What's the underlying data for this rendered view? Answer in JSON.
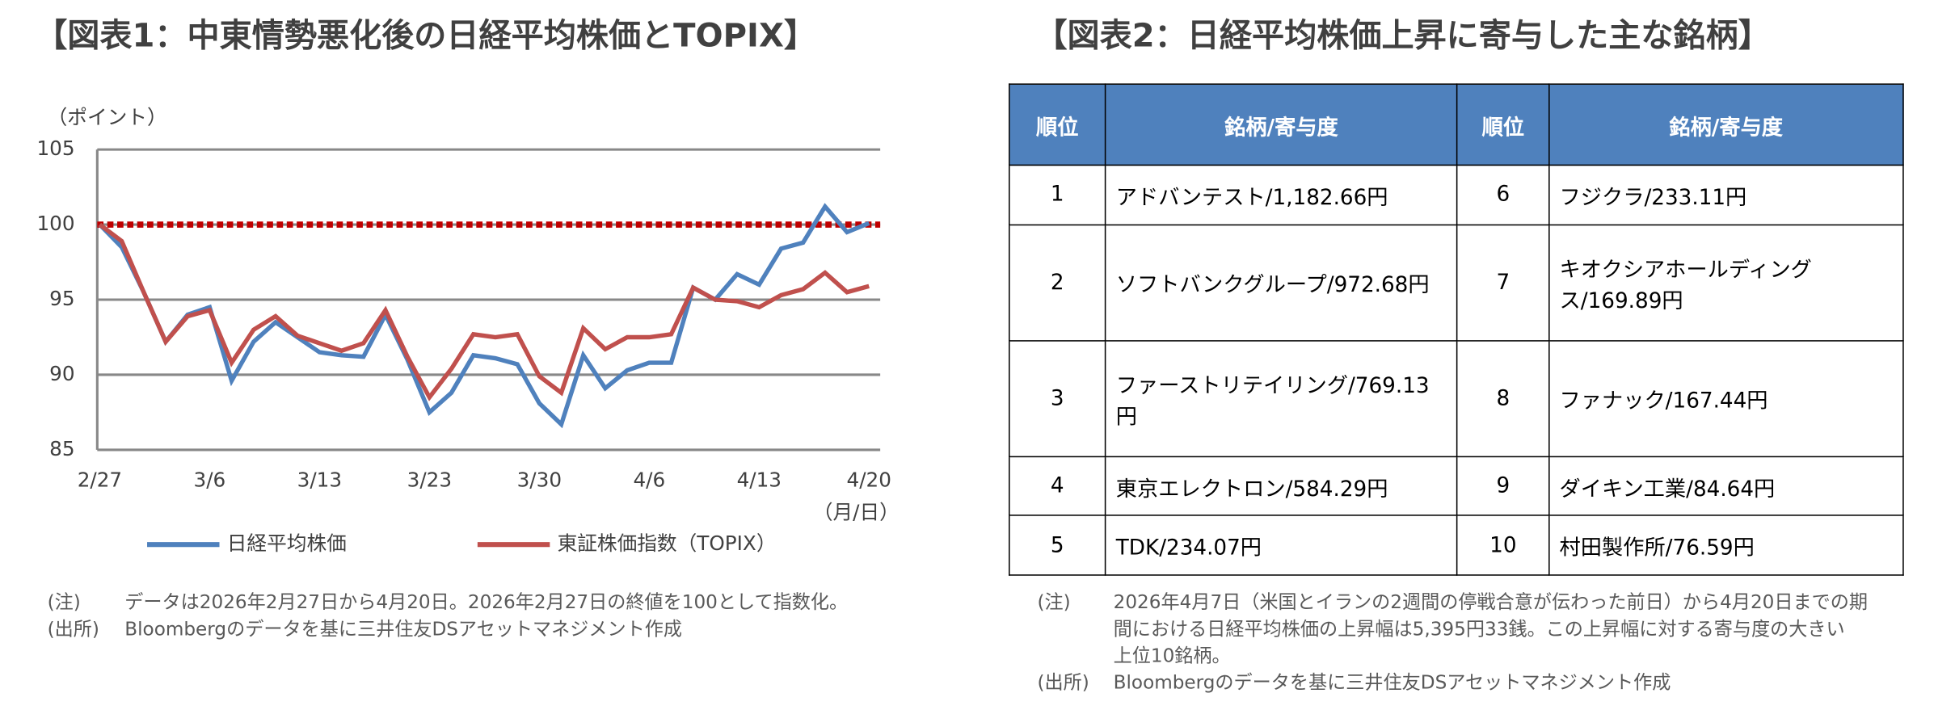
{
  "chart_data": {
    "type": "line",
    "title": "【図表1：中東情勢悪化後の日経平均株価とTOPIX】",
    "y_label": "（ポイント）",
    "x_label": "（月/日）",
    "categories": [
      "2/27",
      null,
      null,
      null,
      null,
      "3/6",
      null,
      null,
      null,
      null,
      "3/13",
      null,
      null,
      null,
      null,
      "3/23",
      null,
      null,
      null,
      null,
      "3/30",
      null,
      null,
      null,
      null,
      "4/6",
      null,
      null,
      null,
      null,
      "4/13",
      null,
      null,
      null,
      null,
      "4/20"
    ],
    "series": [
      {
        "name": "日経平均株価",
        "color": "#4f81bd",
        "values": [
          100,
          98.5,
          95.5,
          92.2,
          94,
          94.5,
          89.6,
          92.2,
          93.5,
          92.5,
          91.5,
          91.3,
          91.2,
          94,
          91,
          87.5,
          88.8,
          91.3,
          91.1,
          90.7,
          88.1,
          86.7,
          91.3,
          89.1,
          90.3,
          90.8,
          90.8,
          95.8,
          95,
          96.7,
          96,
          98.4,
          98.8,
          101.2,
          99.5,
          100.1
        ]
      },
      {
        "name": "東証株価指数（TOPIX）",
        "color": "#c0504d",
        "values": [
          100,
          98.9,
          95.5,
          92.2,
          93.9,
          94.3,
          90.8,
          93,
          93.9,
          92.6,
          92.1,
          91.6,
          92.1,
          94.3,
          91.2,
          88.5,
          90.4,
          92.7,
          92.5,
          92.7,
          89.9,
          88.8,
          93.1,
          91.7,
          92.5,
          92.5,
          92.7,
          95.8,
          95,
          94.9,
          94.5,
          95.3,
          95.7,
          96.8,
          95.5,
          95.9
        ]
      }
    ],
    "reference_line": {
      "value": 100,
      "color": "#c00000"
    },
    "ylim": [
      85,
      105
    ],
    "yticks": [
      85,
      90,
      95,
      100,
      105
    ],
    "grid": true,
    "legend": "bottom"
  },
  "notes1": [
    {
      "label": "(注)",
      "text": "データは2026年2月27日から4月20日。2026年2月27日の終値を100として指数化。"
    },
    {
      "label": "(出所)",
      "text": "Bloombergのデータを基に三井住友DSアセットマネジメント作成"
    }
  ],
  "table": {
    "title": "【図表2：日経平均株価上昇に寄与した主な銘柄】",
    "columns": [
      "順位",
      "銘柄/寄与度",
      "順位",
      "銘柄/寄与度"
    ],
    "rows": [
      [
        1,
        "アドバンテスト/1,182.66円"
      ],
      [
        2,
        "ソフトバンクグループ/972.68円"
      ],
      [
        3,
        "ファーストリテイリング/769.13円"
      ],
      [
        4,
        "東京エレクトロン/584.29円"
      ],
      [
        5,
        "TDK/234.07円"
      ],
      [
        6,
        "フジクラ/233.11円"
      ],
      [
        7,
        "キオクシアホールディングス/169.89円"
      ],
      [
        8,
        "ファナック/167.44円"
      ],
      [
        9,
        "ダイキン工業/84.64円"
      ],
      [
        10,
        "村田製作所/76.59円"
      ]
    ]
  },
  "notes2": [
    {
      "label": "(注)",
      "text": [
        "2026年4月7日（米国とイランの2週間の停戦合意が伝わった前日）から4月20日までの期",
        "間における日経平均株価の上昇幅は5,395円33銭。この上昇幅に対する寄与度の大きい",
        "上位10銘柄。"
      ]
    },
    {
      "label": "(出所)",
      "text": [
        "Bloombergのデータを基に三井住友DSアセットマネジメント作成"
      ]
    }
  ]
}
